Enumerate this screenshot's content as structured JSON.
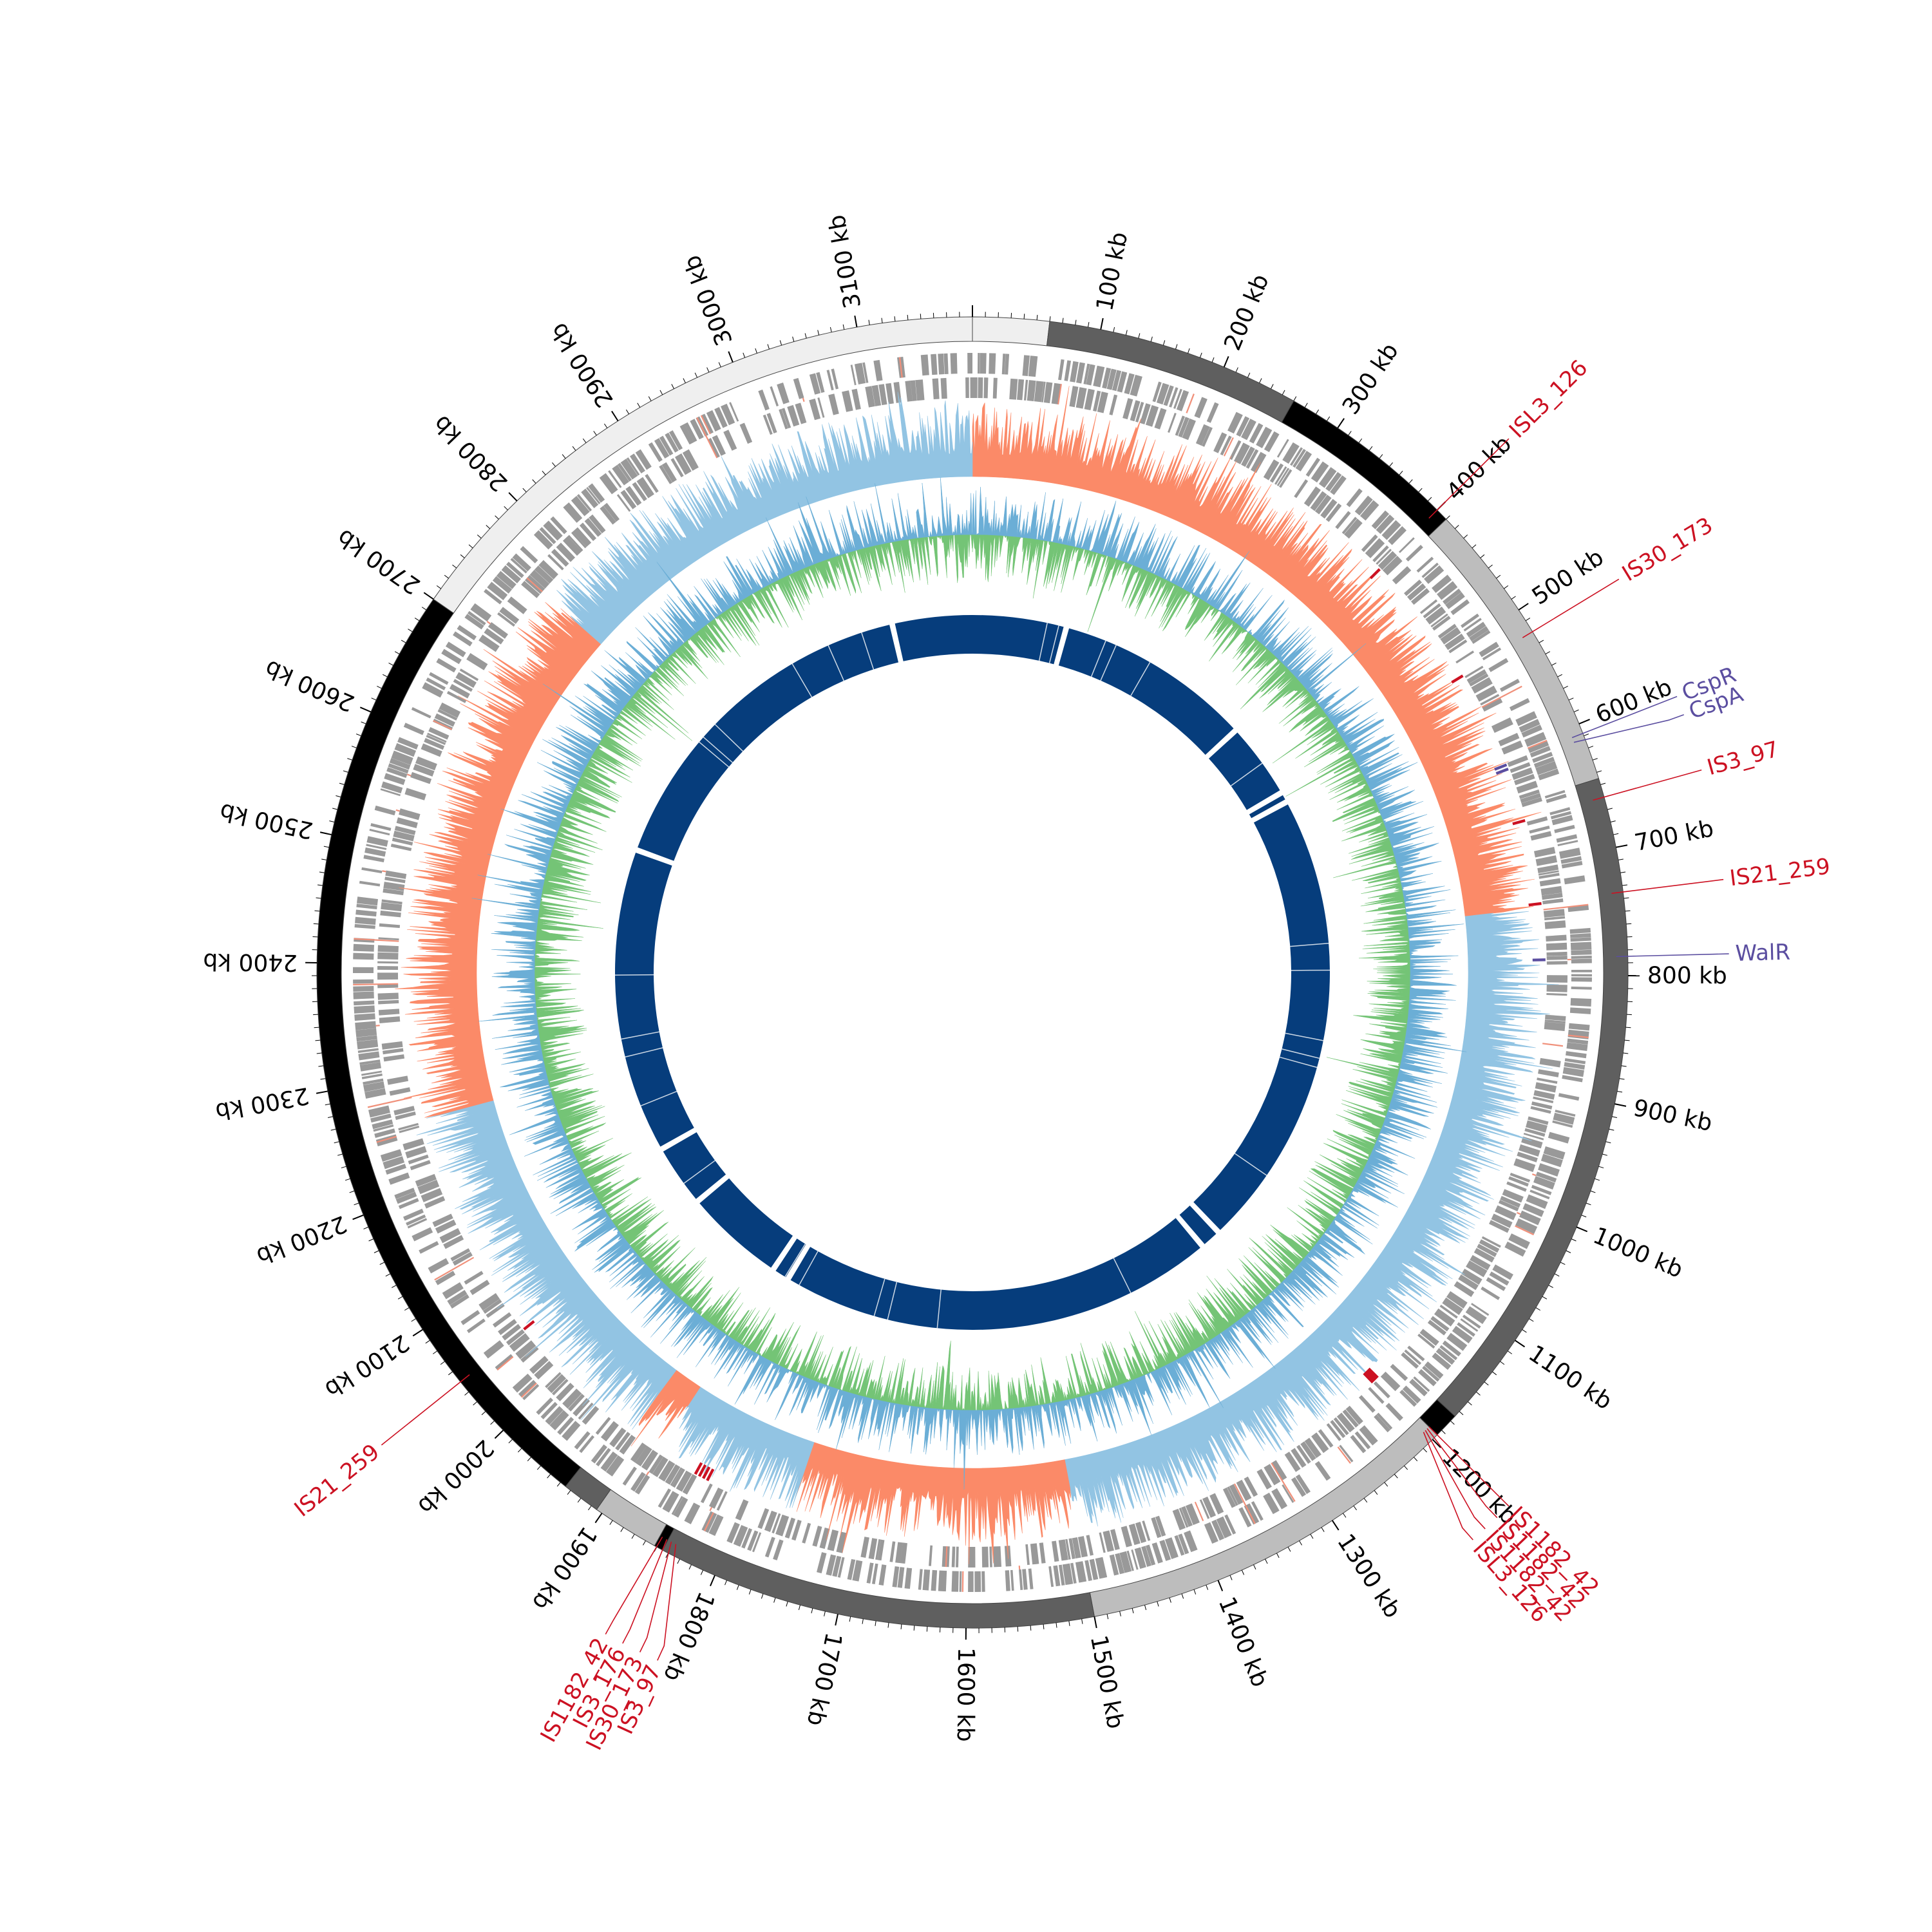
{
  "genome": {
    "length_kb": 3190,
    "tick_major_step_kb": 100,
    "tick_unit": "kb",
    "tick_labels": [
      "100 kb",
      "200 kb",
      "300 kb",
      "400 kb",
      "500 kb",
      "600 kb",
      "700 kb",
      "800 kb",
      "900 kb",
      "1000 kb",
      "1100 kb",
      "1200 kb",
      "1300 kb",
      "1400 kb",
      "1500 kb",
      "1600 kb",
      "1700 kb",
      "1800 kb",
      "1900 kb",
      "2000 kb",
      "2100 kb",
      "2200 kb",
      "2300 kb",
      "2400 kb",
      "2500 kb",
      "2600 kb",
      "2700 kb",
      "2800 kb",
      "2900 kb",
      "3000 kb",
      "3100 kb"
    ]
  },
  "colors": {
    "outer_black": "#000000",
    "outer_dark": "#5f5f5f",
    "outer_mid": "#bdbdbd",
    "outer_light": "#efefef",
    "genes": "#999999",
    "gc_skew_pos": "#fb8a68",
    "gc_skew_neg": "#92c4e3",
    "gc_content_blue": "#6baed6",
    "gc_content_green": "#74c476",
    "inner_ring": "#063d7c",
    "insertion": "#cc1122",
    "regulator": "#5b4ea0"
  },
  "outer_segments": [
    {
      "start": 0,
      "end": 60,
      "shade": "light"
    },
    {
      "start": 60,
      "end": 260,
      "shade": "dark"
    },
    {
      "start": 260,
      "end": 410,
      "shade": "black"
    },
    {
      "start": 410,
      "end": 645,
      "shade": "mid"
    },
    {
      "start": 645,
      "end": 1175,
      "shade": "dark"
    },
    {
      "start": 1175,
      "end": 1195,
      "shade": "black"
    },
    {
      "start": 1195,
      "end": 1500,
      "shade": "mid"
    },
    {
      "start": 1500,
      "end": 1845,
      "shade": "dark"
    },
    {
      "start": 1845,
      "end": 1852,
      "shade": "black"
    },
    {
      "start": 1852,
      "end": 1905,
      "shade": "mid"
    },
    {
      "start": 1905,
      "end": 1935,
      "shade": "dark"
    },
    {
      "start": 1935,
      "end": 2700,
      "shade": "black"
    },
    {
      "start": 2700,
      "end": 3190,
      "shade": "light"
    }
  ],
  "gc_skew_blocks": [
    {
      "start": 0,
      "end": 740,
      "sign": "pos"
    },
    {
      "start": 740,
      "end": 1140,
      "sign": "neg"
    },
    {
      "start": 1140,
      "end": 1180,
      "sign": "neg"
    },
    {
      "start": 1180,
      "end": 1500,
      "sign": "neg"
    },
    {
      "start": 1500,
      "end": 1760,
      "sign": "pos"
    },
    {
      "start": 1760,
      "end": 1890,
      "sign": "neg"
    },
    {
      "start": 1890,
      "end": 1920,
      "sign": "pos"
    },
    {
      "start": 1920,
      "end": 2260,
      "sign": "neg"
    },
    {
      "start": 2260,
      "end": 2760,
      "sign": "pos"
    },
    {
      "start": 2760,
      "end": 3190,
      "sign": "neg"
    }
  ],
  "inner_ring_gaps_kb": [
    135,
    420,
    530,
    545,
    1210,
    1240,
    1870,
    1895,
    2040,
    2130,
    2570,
    3075
  ],
  "annotations": [
    {
      "label": "ISL3_126",
      "kind": "insertion",
      "pos": 400
    },
    {
      "label": "IS30_173",
      "kind": "insertion",
      "pos": 520
    },
    {
      "label": "CspR",
      "kind": "regulator",
      "pos": 608
    },
    {
      "label": "CspA",
      "kind": "regulator",
      "pos": 612
    },
    {
      "label": "IS3_97",
      "kind": "insertion",
      "pos": 660
    },
    {
      "label": "IS21_259",
      "kind": "insertion",
      "pos": 735
    },
    {
      "label": "WalR",
      "kind": "regulator",
      "pos": 785
    },
    {
      "label": "IS1182_42",
      "kind": "insertion",
      "pos": 1195
    },
    {
      "label": "IS1182_42",
      "kind": "insertion",
      "pos": 1197
    },
    {
      "label": "IS1182_42",
      "kind": "insertion",
      "pos": 1199
    },
    {
      "label": "ISL3_126",
      "kind": "insertion",
      "pos": 1201
    },
    {
      "label": "IS3_97",
      "kind": "insertion",
      "pos": 1838
    },
    {
      "label": "IS30_173",
      "kind": "insertion",
      "pos": 1842
    },
    {
      "label": "IS3_176",
      "kind": "insertion",
      "pos": 1846
    },
    {
      "label": "IS1182_42",
      "kind": "insertion",
      "pos": 1850
    },
    {
      "label": "IS21_259",
      "kind": "insertion",
      "pos": 2050
    }
  ]
}
